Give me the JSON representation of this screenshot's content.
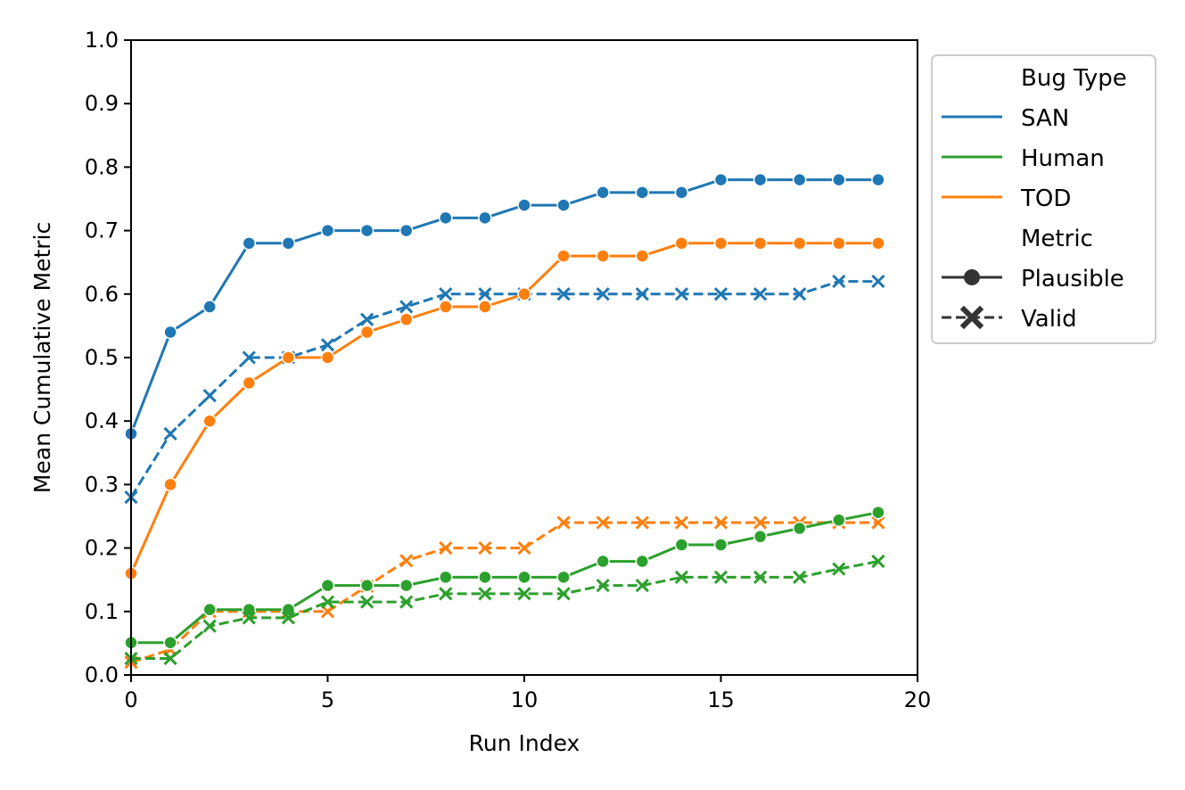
{
  "chart_data": {
    "type": "line",
    "title": "",
    "xlabel": "Run Index",
    "ylabel": "Mean Cumulative Metric",
    "xlim": [
      0,
      20
    ],
    "ylim": [
      0,
      1.0
    ],
    "xticks": [
      "0",
      "5",
      "10",
      "15",
      "20"
    ],
    "yticks": [
      "0.0",
      "0.1",
      "0.2",
      "0.3",
      "0.4",
      "0.5",
      "0.6",
      "0.7",
      "0.8",
      "0.9",
      "1.0"
    ],
    "grid": false,
    "legend_position": "outside-right-top",
    "x": [
      0,
      1,
      2,
      3,
      4,
      5,
      6,
      7,
      8,
      9,
      10,
      11,
      12,
      13,
      14,
      15,
      16,
      17,
      18,
      19
    ],
    "series": [
      {
        "bug_type": "SAN",
        "metric": "Plausible",
        "color": "#1f77b4",
        "dash": "solid",
        "marker": "circle",
        "values": [
          0.38,
          0.54,
          0.58,
          0.68,
          0.68,
          0.7,
          0.7,
          0.7,
          0.72,
          0.72,
          0.74,
          0.74,
          0.76,
          0.76,
          0.76,
          0.78,
          0.78,
          0.78,
          0.78,
          0.78
        ]
      },
      {
        "bug_type": "SAN",
        "metric": "Valid",
        "color": "#1f77b4",
        "dash": "dashed",
        "marker": "x",
        "values": [
          0.28,
          0.38,
          0.44,
          0.5,
          0.5,
          0.52,
          0.56,
          0.58,
          0.6,
          0.6,
          0.6,
          0.6,
          0.6,
          0.6,
          0.6,
          0.6,
          0.6,
          0.6,
          0.62,
          0.62
        ]
      },
      {
        "bug_type": "TOD",
        "metric": "Plausible",
        "color": "#ff7f0e",
        "dash": "solid",
        "marker": "circle",
        "values": [
          0.16,
          0.3,
          0.4,
          0.46,
          0.5,
          0.5,
          0.54,
          0.56,
          0.58,
          0.58,
          0.6,
          0.66,
          0.66,
          0.66,
          0.68,
          0.68,
          0.68,
          0.68,
          0.68,
          0.68
        ]
      },
      {
        "bug_type": "TOD",
        "metric": "Valid",
        "color": "#ff7f0e",
        "dash": "dashed",
        "marker": "x",
        "values": [
          0.02,
          0.04,
          0.1,
          0.1,
          0.1,
          0.1,
          0.14,
          0.18,
          0.2,
          0.2,
          0.2,
          0.24,
          0.24,
          0.24,
          0.24,
          0.24,
          0.24,
          0.24,
          0.24,
          0.24
        ]
      },
      {
        "bug_type": "Human",
        "metric": "Plausible",
        "color": "#2ca02c",
        "dash": "solid",
        "marker": "circle",
        "values": [
          0.051,
          0.051,
          0.103,
          0.103,
          0.103,
          0.141,
          0.141,
          0.141,
          0.154,
          0.154,
          0.154,
          0.154,
          0.179,
          0.179,
          0.205,
          0.205,
          0.218,
          0.231,
          0.244,
          0.256
        ]
      },
      {
        "bug_type": "Human",
        "metric": "Valid",
        "color": "#2ca02c",
        "dash": "dashed",
        "marker": "x",
        "values": [
          0.026,
          0.026,
          0.077,
          0.09,
          0.09,
          0.115,
          0.115,
          0.115,
          0.128,
          0.128,
          0.128,
          0.128,
          0.141,
          0.141,
          0.154,
          0.154,
          0.154,
          0.154,
          0.167,
          0.179
        ]
      }
    ],
    "legend": {
      "hue_title": "Bug Type",
      "hue_entries": [
        {
          "label": "SAN",
          "color": "#1f77b4"
        },
        {
          "label": "Human",
          "color": "#2ca02c"
        },
        {
          "label": "TOD",
          "color": "#ff7f0e"
        }
      ],
      "style_title": "Metric",
      "style_entries": [
        {
          "label": "Plausible",
          "dash": "solid",
          "marker": "circle",
          "color": "#333333"
        },
        {
          "label": "Valid",
          "dash": "dashed",
          "marker": "x",
          "color": "#333333"
        }
      ]
    }
  }
}
